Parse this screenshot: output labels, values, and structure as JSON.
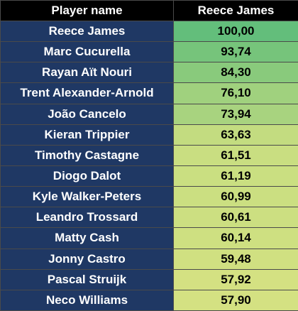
{
  "chart_data": {
    "type": "table",
    "columns": [
      "Player name",
      "Reece James"
    ],
    "rows": [
      {
        "player": "Reece James",
        "value": "100,00",
        "score": 100.0,
        "color": "#63be7b"
      },
      {
        "player": "Marc Cucurella",
        "value": "93,74",
        "score": 93.74,
        "color": "#76c47b"
      },
      {
        "player": "Rayan Aït Nouri",
        "value": "84,30",
        "score": 84.3,
        "color": "#89ca7c"
      },
      {
        "player": "Trent Alexander-Arnold",
        "value": "76,10",
        "score": 76.1,
        "color": "#a0d17e"
      },
      {
        "player": "João Cancelo",
        "value": "73,94",
        "score": 73.94,
        "color": "#a8d37f"
      },
      {
        "player": "Kieran Trippier",
        "value": "63,63",
        "score": 63.63,
        "color": "#c3dc80"
      },
      {
        "player": "Timothy Castagne",
        "value": "61,51",
        "score": 61.51,
        "color": "#c9de81"
      },
      {
        "player": "Diogo Dalot",
        "value": "61,19",
        "score": 61.19,
        "color": "#cadf81"
      },
      {
        "player": "Kyle Walker-Peters",
        "value": "60,99",
        "score": 60.99,
        "color": "#cbdf81"
      },
      {
        "player": "Leandro Trossard",
        "value": "60,61",
        "score": 60.61,
        "color": "#ccdf81"
      },
      {
        "player": "Matty Cash",
        "value": "60,14",
        "score": 60.14,
        "color": "#cee081"
      },
      {
        "player": "Jonny Castro",
        "value": "59,48",
        "score": 59.48,
        "color": "#d0e081"
      },
      {
        "player": "Pascal Struijk",
        "value": "57,92",
        "score": 57.92,
        "color": "#d4e182"
      },
      {
        "player": "Neco Williams",
        "value": "57,90",
        "score": 57.9,
        "color": "#d4e182"
      }
    ]
  }
}
